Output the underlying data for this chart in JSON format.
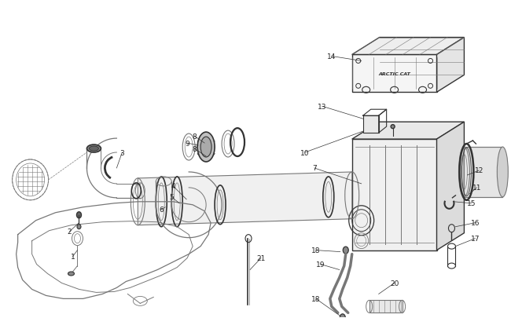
{
  "bg_color": "#ffffff",
  "line_color": "#777777",
  "dark_line": "#333333",
  "label_color": "#222222",
  "fig_width": 6.5,
  "fig_height": 4.06,
  "dpi": 100
}
